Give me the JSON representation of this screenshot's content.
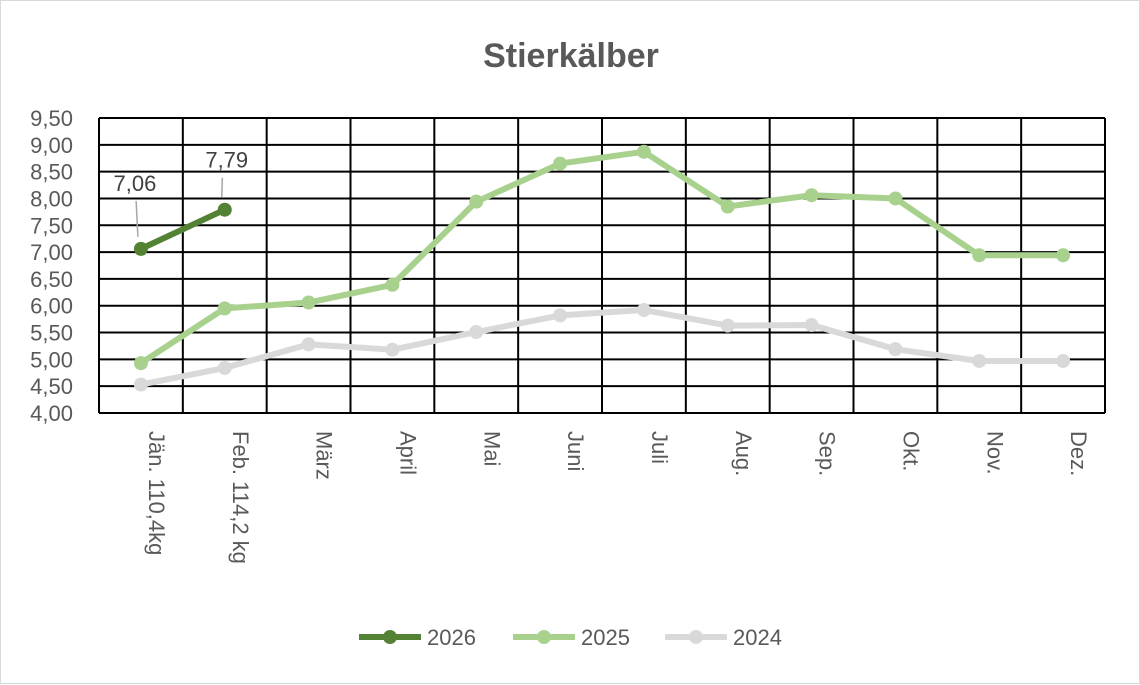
{
  "chart_data": {
    "type": "line",
    "title": "Stierkälber",
    "xlabel": "",
    "ylabel": "",
    "categories": [
      "Jän.  110,4kg",
      "Feb.  114,2 kg",
      "März",
      "April",
      "Mai",
      "Juni",
      "Juli",
      "Aug.",
      "Sep.",
      "Okt.",
      "Nov.",
      "Dez."
    ],
    "ylim": [
      4.0,
      9.5
    ],
    "ytick_step": 0.5,
    "ytick_labels": [
      "4,00",
      "4,50",
      "5,00",
      "5,50",
      "6,00",
      "6,50",
      "7,00",
      "7,50",
      "8,00",
      "8,50",
      "9,00",
      "9,50"
    ],
    "grid": true,
    "legend": "bottom",
    "series": [
      {
        "name": "2026",
        "color": "#548235",
        "values": [
          7.06,
          7.79,
          null,
          null,
          null,
          null,
          null,
          null,
          null,
          null,
          null,
          null
        ],
        "data_labels": [
          "7,06",
          "7,79"
        ]
      },
      {
        "name": "2025",
        "color": "#a9d18e",
        "values": [
          4.93,
          5.95,
          6.06,
          6.39,
          7.94,
          8.65,
          8.87,
          7.85,
          8.06,
          8.0,
          6.94,
          6.94
        ]
      },
      {
        "name": "2024",
        "color": "#d9d9d9",
        "values": [
          4.53,
          4.84,
          5.28,
          5.18,
          5.51,
          5.82,
          5.92,
          5.63,
          5.64,
          5.19,
          4.97,
          4.97
        ]
      }
    ]
  }
}
